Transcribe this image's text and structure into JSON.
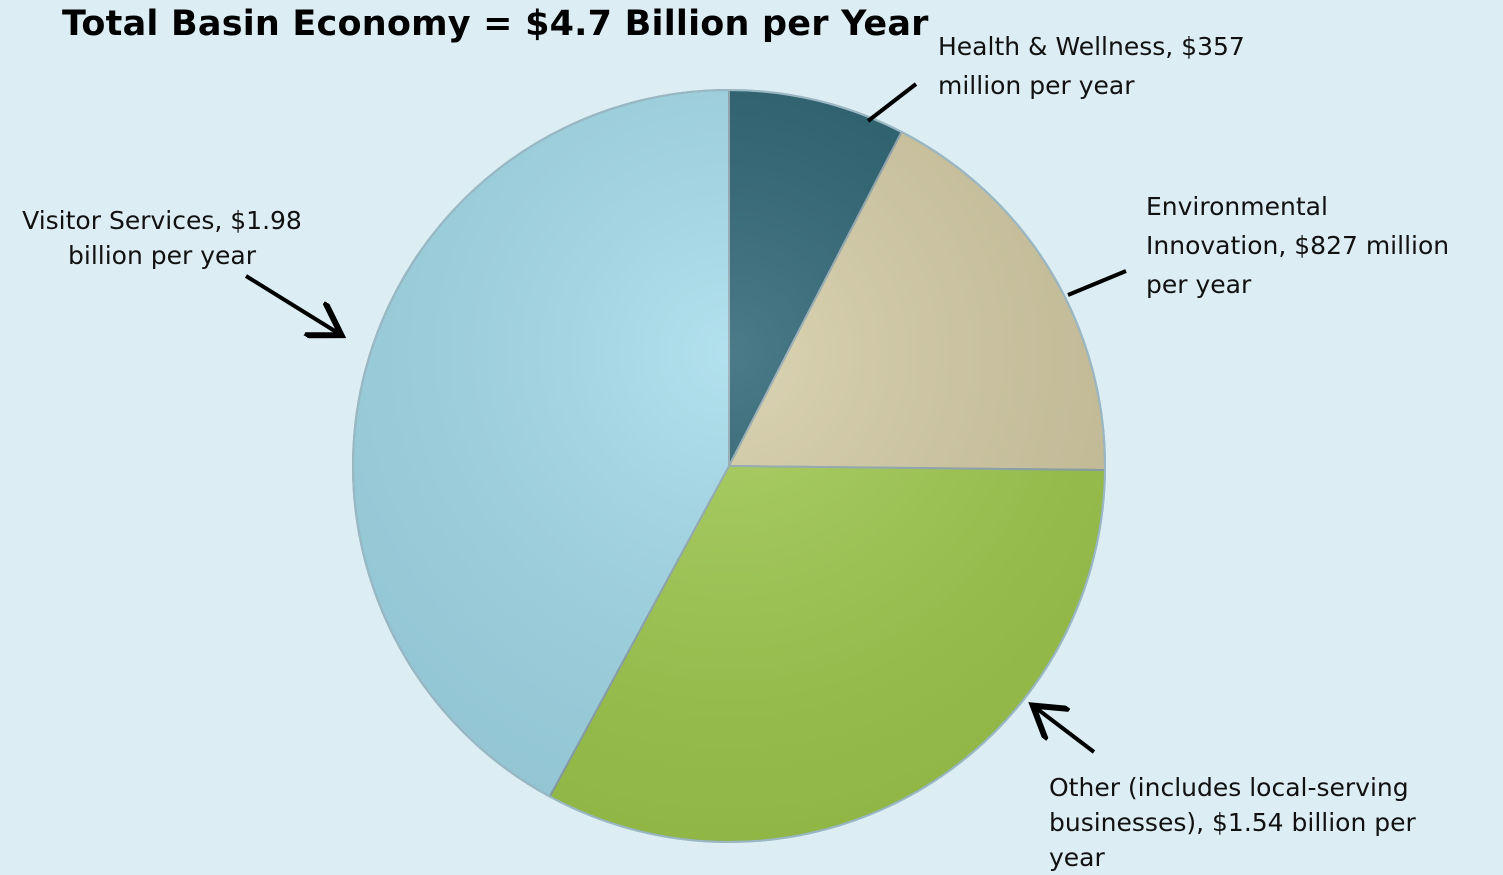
{
  "chart_data": {
    "type": "pie",
    "title": "Total Basin Economy = $4.7 Billion per Year",
    "slices": [
      {
        "label": "Health & Wellness, $357 million per year",
        "value": 357,
        "color": "#245e6e"
      },
      {
        "label": "Environmental Innovation, $827 million per year",
        "value": 827,
        "color": "#d4cba3"
      },
      {
        "label": "Other (includes local-serving businesses), $1.54 billion per year",
        "value": 1540,
        "color": "#9fca4c"
      },
      {
        "label": "Visitor Services, $1.98 billion per year",
        "value": 1980,
        "color": "#a2dbeb"
      }
    ],
    "start_angle": "12 o'clock",
    "direction": "clockwise",
    "legend": "none"
  },
  "labels": {
    "health": "Health & Wellness, $357\nmillion per year",
    "environmental": "Environmental\nInnovation, $827 million\nper year",
    "visitor": "Visitor Services, $1.98\nbillion per year",
    "other": "Other (includes local-serving\nbusinesses), $1.54 billion per\nyear"
  }
}
